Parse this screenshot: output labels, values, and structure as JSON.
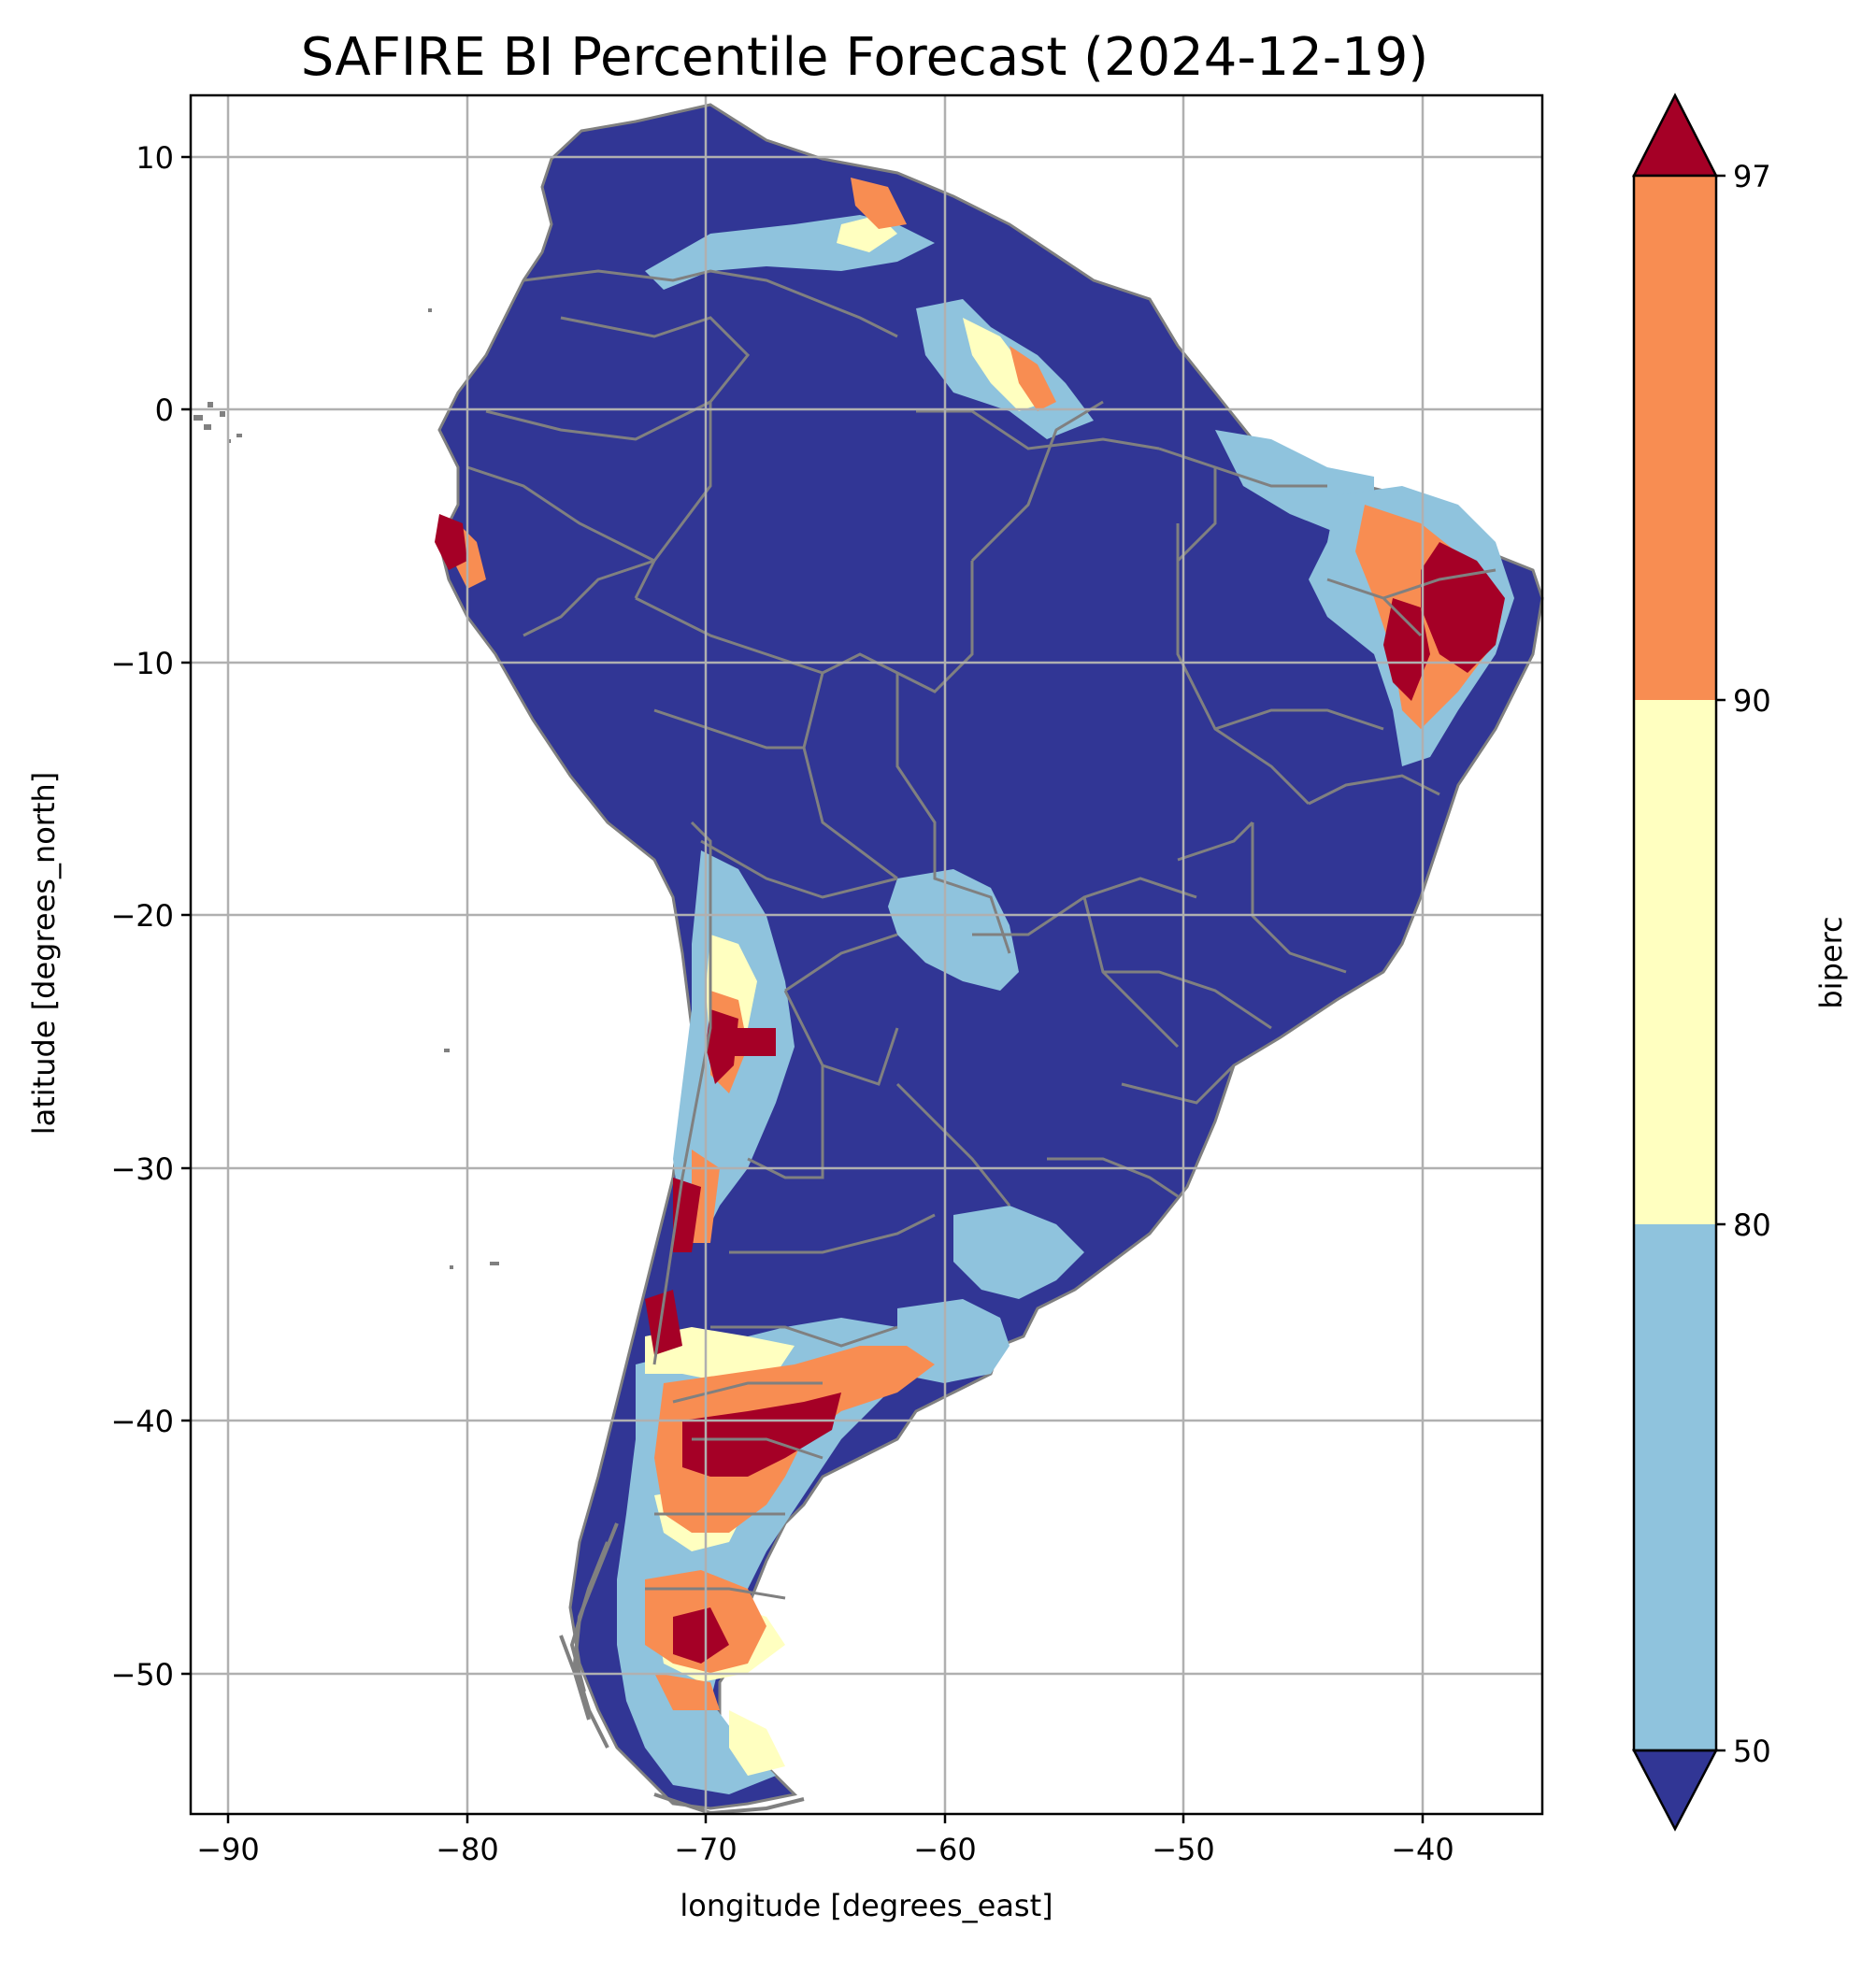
{
  "title": "SAFIRE BI Percentile Forecast (2024-12-19)",
  "xlabel": "longitude [degrees_east]",
  "ylabel": "latitude [degrees_north]",
  "x_ticks": [
    "−90",
    "−80",
    "−70",
    "−60",
    "−50",
    "−40"
  ],
  "y_ticks": [
    "10",
    "0",
    "−10",
    "−20",
    "−30",
    "−40",
    "−50"
  ],
  "colorbar": {
    "label": "biperc",
    "ticks": [
      "97",
      "90",
      "80",
      "50"
    ],
    "colors": {
      "below_50": "#313695",
      "50_80": "#8fc3dd",
      "80_90": "#ffffc0",
      "90_97": "#f88d52",
      "above_97": "#a50026"
    }
  },
  "chart_data": {
    "type": "heatmap",
    "title": "SAFIRE BI Percentile Forecast (2024-12-19)",
    "xlabel": "longitude [degrees_east]",
    "ylabel": "latitude [degrees_north]",
    "xlim": [
      -91.6,
      -35.0
    ],
    "ylim": [
      -55.8,
      12.4
    ],
    "x_ticks": [
      -90,
      -80,
      -70,
      -60,
      -50,
      -40
    ],
    "y_ticks": [
      10,
      0,
      -10,
      -20,
      -30,
      -40,
      -50
    ],
    "grid": true,
    "colorbar_label": "biperc",
    "levels": [
      50,
      80,
      90,
      97
    ],
    "extend": "both",
    "border_color": "#808080"
  }
}
